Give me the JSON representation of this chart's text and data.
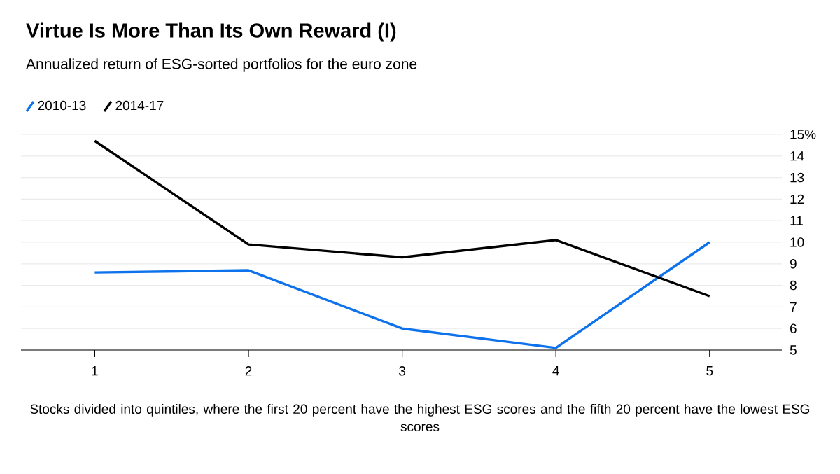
{
  "chart_data": {
    "type": "line",
    "title": "Virtue Is More Than Its Own Reward (I)",
    "subtitle": "Annualized return of ESG-sorted portfolios for the euro zone",
    "x": [
      1,
      2,
      3,
      4,
      5
    ],
    "series": [
      {
        "name": "2010-13",
        "color": "#0d72eb",
        "values": [
          8.6,
          8.7,
          6.0,
          5.1,
          10.0
        ]
      },
      {
        "name": "2014-17",
        "color": "#000000",
        "values": [
          14.7,
          9.9,
          9.3,
          10.1,
          7.5
        ]
      }
    ],
    "xlim": [
      0.52,
      5.47
    ],
    "xticks": [
      1,
      2,
      3,
      4,
      5
    ],
    "ylim": [
      5,
      15
    ],
    "yticks": [
      5,
      6,
      7,
      8,
      9,
      10,
      11,
      12,
      13,
      14,
      {
        "value": 15,
        "label": "15%"
      }
    ],
    "grid": "y",
    "legend": "top left",
    "marker": "none",
    "line_style": "solid",
    "annotations": [
      "Stocks divided into quintiles, where the first 20 percent have the highest ESG scores and the fifth 20 percent have the lowest ESG scores"
    ]
  }
}
